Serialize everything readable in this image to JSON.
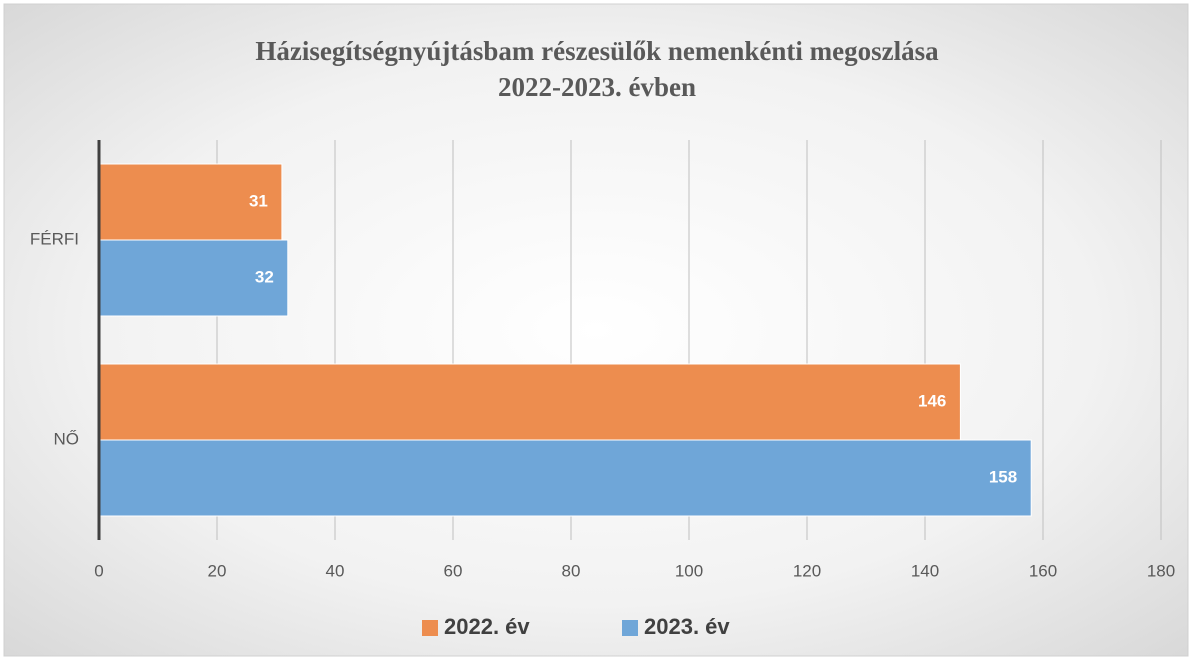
{
  "chart_data": {
    "type": "bar",
    "orientation": "horizontal",
    "title": "Házisegítségnyújtásbam részesülők nemenkénti megoszlása 2022-2023. évben",
    "categories": [
      "FÉRFI",
      "NŐ"
    ],
    "series": [
      {
        "name": "2022. év",
        "color": "#ed8d4f",
        "values": [
          31,
          146
        ]
      },
      {
        "name": "2023. év",
        "color": "#6fa6d8",
        "values": [
          32,
          158
        ]
      }
    ],
    "xlim": [
      0,
      180
    ],
    "xticks": [
      0,
      20,
      40,
      60,
      80,
      100,
      120,
      140,
      160,
      180
    ],
    "grid": true,
    "legend": "bottom"
  }
}
